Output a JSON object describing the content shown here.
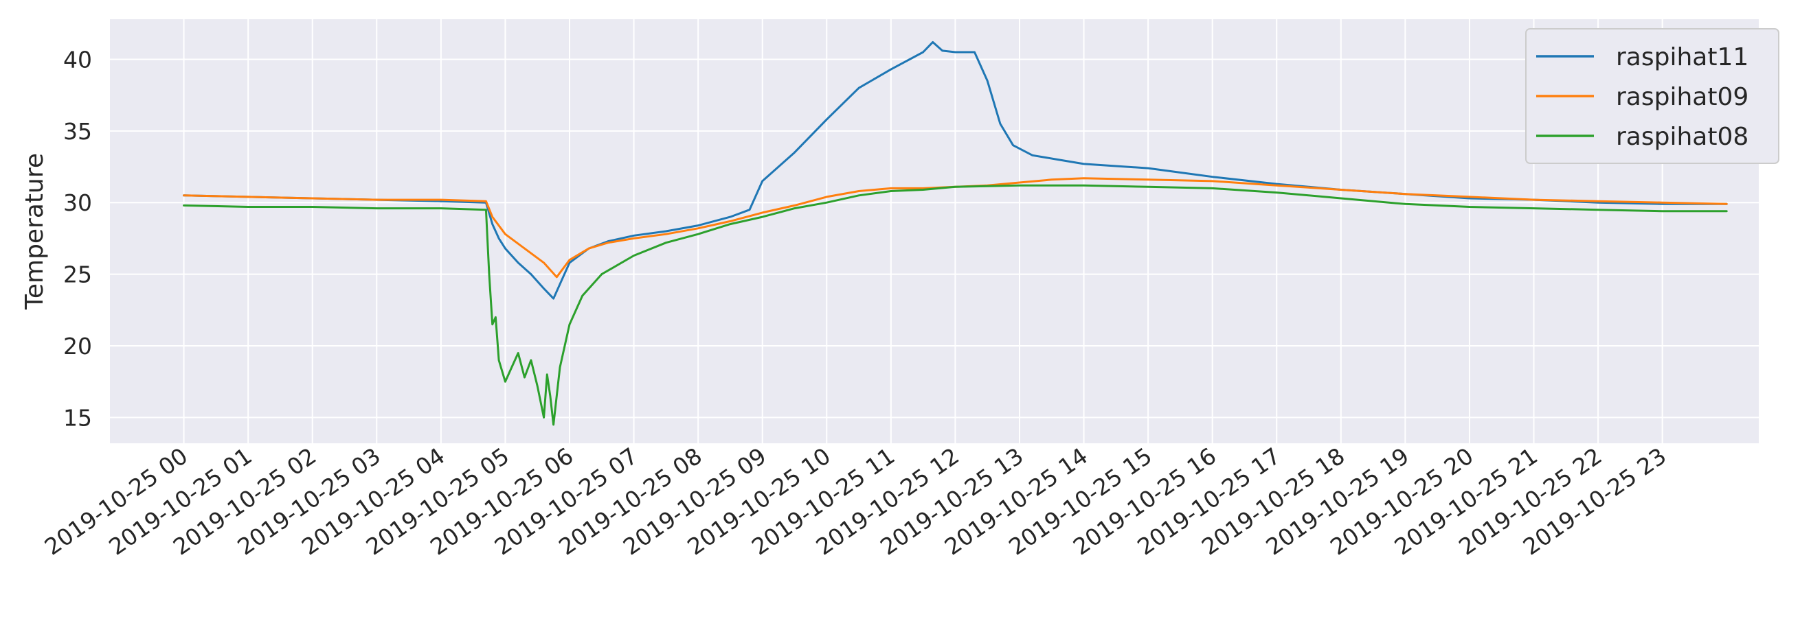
{
  "chart_data": {
    "type": "line",
    "title": "",
    "xlabel": "",
    "ylabel": "Temperature",
    "xlim": [
      -1.15,
      24.5
    ],
    "ylim": [
      13.2,
      42.8
    ],
    "grid": true,
    "legend_position": "top-right",
    "x_ticks": [
      {
        "x": 0,
        "label": "2019-10-25 00"
      },
      {
        "x": 1,
        "label": "2019-10-25 01"
      },
      {
        "x": 2,
        "label": "2019-10-25 02"
      },
      {
        "x": 3,
        "label": "2019-10-25 03"
      },
      {
        "x": 4,
        "label": "2019-10-25 04"
      },
      {
        "x": 5,
        "label": "2019-10-25 05"
      },
      {
        "x": 6,
        "label": "2019-10-25 06"
      },
      {
        "x": 7,
        "label": "2019-10-25 07"
      },
      {
        "x": 8,
        "label": "2019-10-25 08"
      },
      {
        "x": 9,
        "label": "2019-10-25 09"
      },
      {
        "x": 10,
        "label": "2019-10-25 10"
      },
      {
        "x": 11,
        "label": "2019-10-25 11"
      },
      {
        "x": 12,
        "label": "2019-10-25 12"
      },
      {
        "x": 13,
        "label": "2019-10-25 13"
      },
      {
        "x": 14,
        "label": "2019-10-25 14"
      },
      {
        "x": 15,
        "label": "2019-10-25 15"
      },
      {
        "x": 16,
        "label": "2019-10-25 16"
      },
      {
        "x": 17,
        "label": "2019-10-25 17"
      },
      {
        "x": 18,
        "label": "2019-10-25 18"
      },
      {
        "x": 19,
        "label": "2019-10-25 19"
      },
      {
        "x": 20,
        "label": "2019-10-25 20"
      },
      {
        "x": 21,
        "label": "2019-10-25 21"
      },
      {
        "x": 22,
        "label": "2019-10-25 22"
      },
      {
        "x": 23,
        "label": "2019-10-25 23"
      }
    ],
    "y_ticks": [
      15,
      20,
      25,
      30,
      35,
      40
    ],
    "series": [
      {
        "name": "raspihat11",
        "color": "#1f77b4",
        "points": [
          [
            0,
            30.5
          ],
          [
            1,
            30.4
          ],
          [
            2,
            30.3
          ],
          [
            3,
            30.2
          ],
          [
            4,
            30.1
          ],
          [
            4.7,
            30.0
          ],
          [
            4.8,
            28.5
          ],
          [
            4.9,
            27.5
          ],
          [
            5.0,
            26.8
          ],
          [
            5.2,
            25.8
          ],
          [
            5.4,
            25.0
          ],
          [
            5.6,
            24.0
          ],
          [
            5.75,
            23.3
          ],
          [
            5.9,
            24.8
          ],
          [
            6.0,
            25.8
          ],
          [
            6.3,
            26.8
          ],
          [
            6.6,
            27.3
          ],
          [
            7.0,
            27.7
          ],
          [
            7.5,
            28.0
          ],
          [
            8.0,
            28.4
          ],
          [
            8.5,
            29.0
          ],
          [
            8.8,
            29.5
          ],
          [
            9.0,
            31.5
          ],
          [
            9.5,
            33.5
          ],
          [
            10.0,
            35.8
          ],
          [
            10.5,
            38.0
          ],
          [
            11.0,
            39.3
          ],
          [
            11.5,
            40.5
          ],
          [
            11.65,
            41.2
          ],
          [
            11.8,
            40.6
          ],
          [
            12.0,
            40.5
          ],
          [
            12.3,
            40.5
          ],
          [
            12.5,
            38.5
          ],
          [
            12.7,
            35.5
          ],
          [
            12.9,
            34.0
          ],
          [
            13.2,
            33.3
          ],
          [
            13.6,
            33.0
          ],
          [
            14.0,
            32.7
          ],
          [
            15.0,
            32.4
          ],
          [
            16.0,
            31.8
          ],
          [
            17.0,
            31.3
          ],
          [
            18.0,
            30.9
          ],
          [
            19.0,
            30.6
          ],
          [
            20.0,
            30.3
          ],
          [
            21.0,
            30.2
          ],
          [
            22.0,
            30.0
          ],
          [
            23.0,
            29.9
          ],
          [
            24.0,
            29.9
          ]
        ]
      },
      {
        "name": "raspihat09",
        "color": "#ff7f0e",
        "points": [
          [
            0,
            30.5
          ],
          [
            1,
            30.4
          ],
          [
            2,
            30.3
          ],
          [
            3,
            30.2
          ],
          [
            4,
            30.2
          ],
          [
            4.7,
            30.1
          ],
          [
            4.8,
            29.0
          ],
          [
            5.0,
            27.8
          ],
          [
            5.3,
            26.8
          ],
          [
            5.6,
            25.8
          ],
          [
            5.8,
            24.8
          ],
          [
            6.0,
            26.0
          ],
          [
            6.3,
            26.8
          ],
          [
            6.6,
            27.2
          ],
          [
            7.0,
            27.5
          ],
          [
            7.5,
            27.8
          ],
          [
            8.0,
            28.2
          ],
          [
            8.5,
            28.7
          ],
          [
            9.0,
            29.3
          ],
          [
            9.5,
            29.8
          ],
          [
            10.0,
            30.4
          ],
          [
            10.5,
            30.8
          ],
          [
            11.0,
            31.0
          ],
          [
            11.5,
            31.0
          ],
          [
            12.0,
            31.1
          ],
          [
            12.5,
            31.2
          ],
          [
            13.0,
            31.4
          ],
          [
            13.5,
            31.6
          ],
          [
            14.0,
            31.7
          ],
          [
            15.0,
            31.6
          ],
          [
            16.0,
            31.5
          ],
          [
            17.0,
            31.2
          ],
          [
            18.0,
            30.9
          ],
          [
            19.0,
            30.6
          ],
          [
            20.0,
            30.4
          ],
          [
            21.0,
            30.2
          ],
          [
            22.0,
            30.1
          ],
          [
            23.0,
            30.0
          ],
          [
            24.0,
            29.9
          ]
        ]
      },
      {
        "name": "raspihat08",
        "color": "#2ca02c",
        "points": [
          [
            0,
            29.8
          ],
          [
            1,
            29.7
          ],
          [
            2,
            29.7
          ],
          [
            3,
            29.6
          ],
          [
            4,
            29.6
          ],
          [
            4.7,
            29.5
          ],
          [
            4.75,
            25.0
          ],
          [
            4.8,
            21.5
          ],
          [
            4.85,
            22.0
          ],
          [
            4.9,
            19.0
          ],
          [
            5.0,
            17.5
          ],
          [
            5.1,
            18.5
          ],
          [
            5.2,
            19.5
          ],
          [
            5.3,
            17.8
          ],
          [
            5.4,
            19.0
          ],
          [
            5.5,
            17.2
          ],
          [
            5.6,
            15.0
          ],
          [
            5.65,
            18.0
          ],
          [
            5.7,
            16.5
          ],
          [
            5.75,
            14.5
          ],
          [
            5.85,
            18.5
          ],
          [
            6.0,
            21.5
          ],
          [
            6.2,
            23.5
          ],
          [
            6.5,
            25.0
          ],
          [
            7.0,
            26.3
          ],
          [
            7.5,
            27.2
          ],
          [
            8.0,
            27.8
          ],
          [
            8.5,
            28.5
          ],
          [
            9.0,
            29.0
          ],
          [
            9.5,
            29.6
          ],
          [
            10.0,
            30.0
          ],
          [
            10.5,
            30.5
          ],
          [
            11.0,
            30.8
          ],
          [
            11.5,
            30.9
          ],
          [
            12.0,
            31.1
          ],
          [
            13.0,
            31.2
          ],
          [
            14.0,
            31.2
          ],
          [
            15.0,
            31.1
          ],
          [
            16.0,
            31.0
          ],
          [
            17.0,
            30.7
          ],
          [
            18.0,
            30.3
          ],
          [
            19.0,
            29.9
          ],
          [
            20.0,
            29.7
          ],
          [
            21.0,
            29.6
          ],
          [
            22.0,
            29.5
          ],
          [
            23.0,
            29.4
          ],
          [
            24.0,
            29.4
          ]
        ]
      }
    ]
  }
}
